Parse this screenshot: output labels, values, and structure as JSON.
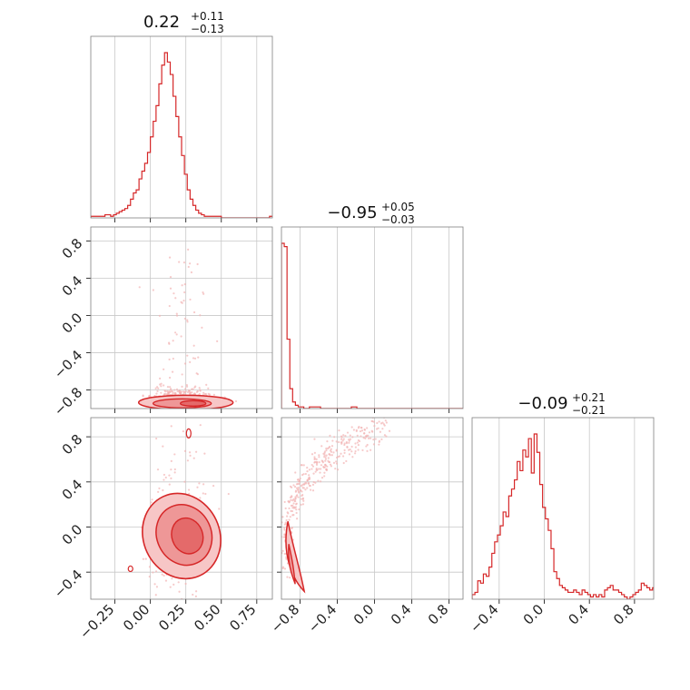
{
  "colors": {
    "line": "#d62728",
    "fill_light": "#f7c6c6",
    "fill_mid": "#ee9797",
    "fill_dark": "#e46a6a",
    "points": "#f2b4b4"
  },
  "chart_data": {
    "type": "corner",
    "grid": true,
    "parameters": [
      {
        "range": [
          -0.42,
          0.86
        ],
        "ticks": [
          "−0.25",
          "0.00",
          "0.25",
          "0.50",
          "0.75"
        ],
        "tick_values": [
          -0.25,
          0.0,
          0.25,
          0.5,
          0.75
        ],
        "title": {
          "median": "0.22",
          "plus": "+0.11",
          "minus": "−0.13"
        },
        "hist": {
          "edges_start": -0.42,
          "bin_width": 0.02,
          "counts": [
            1,
            1,
            1,
            1,
            1,
            2,
            2,
            1,
            2,
            3,
            4,
            5,
            6,
            8,
            12,
            16,
            18,
            25,
            30,
            35,
            42,
            52,
            62,
            72,
            86,
            98,
            106,
            100,
            92,
            78,
            65,
            52,
            40,
            28,
            18,
            12,
            8,
            5,
            3,
            2,
            1,
            1,
            1,
            1,
            1,
            1,
            0,
            0,
            0,
            0,
            0,
            0,
            0,
            0,
            0,
            0,
            0,
            0,
            0,
            0,
            0,
            0,
            0,
            1
          ]
        }
      },
      {
        "range": [
          -1.0,
          0.95
        ],
        "ticks": [
          "−0.8",
          "−0.4",
          "0.0",
          "0.4",
          "0.8"
        ],
        "tick_values": [
          -0.8,
          -0.4,
          0.0,
          0.4,
          0.8
        ],
        "title": {
          "median": "−0.95",
          "plus": "+0.05",
          "minus": "−0.03"
        },
        "hist": {
          "edges_start": -1.0,
          "bin_width": 0.03,
          "counts": [
            100,
            98,
            42,
            12,
            4,
            2,
            1,
            1,
            0,
            0,
            1,
            1,
            1,
            1,
            0,
            0,
            0,
            0,
            0,
            0,
            0,
            0,
            0,
            0,
            0,
            1,
            1,
            0,
            0,
            0,
            0,
            0,
            0,
            0,
            0,
            0,
            0,
            0,
            0,
            0,
            0,
            0,
            0,
            0,
            0,
            0,
            0,
            0,
            0,
            0,
            0,
            0,
            0,
            0,
            0,
            0,
            0,
            0,
            0,
            0,
            0,
            0,
            0,
            0,
            0
          ]
        }
      },
      {
        "range": [
          -0.64,
          0.97
        ],
        "ticks": [
          "−0.4",
          "0.0",
          "0.4",
          "0.8"
        ],
        "tick_values": [
          -0.4,
          0.0,
          0.4,
          0.8
        ],
        "title": {
          "median": "−0.09",
          "plus": "+0.21",
          "minus": "−0.21"
        },
        "hist": {
          "edges_start": -0.64,
          "bin_width": 0.025,
          "counts": [
            2,
            3,
            8,
            7,
            11,
            10,
            14,
            20,
            25,
            28,
            32,
            38,
            36,
            45,
            48,
            52,
            60,
            56,
            65,
            62,
            70,
            55,
            72,
            64,
            50,
            40,
            35,
            30,
            22,
            12,
            9,
            6,
            5,
            4,
            3,
            3,
            4,
            3,
            2,
            4,
            3,
            2,
            1,
            2,
            1,
            2,
            1,
            4,
            5,
            6,
            4,
            4,
            3,
            2,
            1,
            0,
            1,
            2,
            3,
            4,
            7,
            6,
            5,
            4,
            5
          ]
        }
      }
    ]
  }
}
